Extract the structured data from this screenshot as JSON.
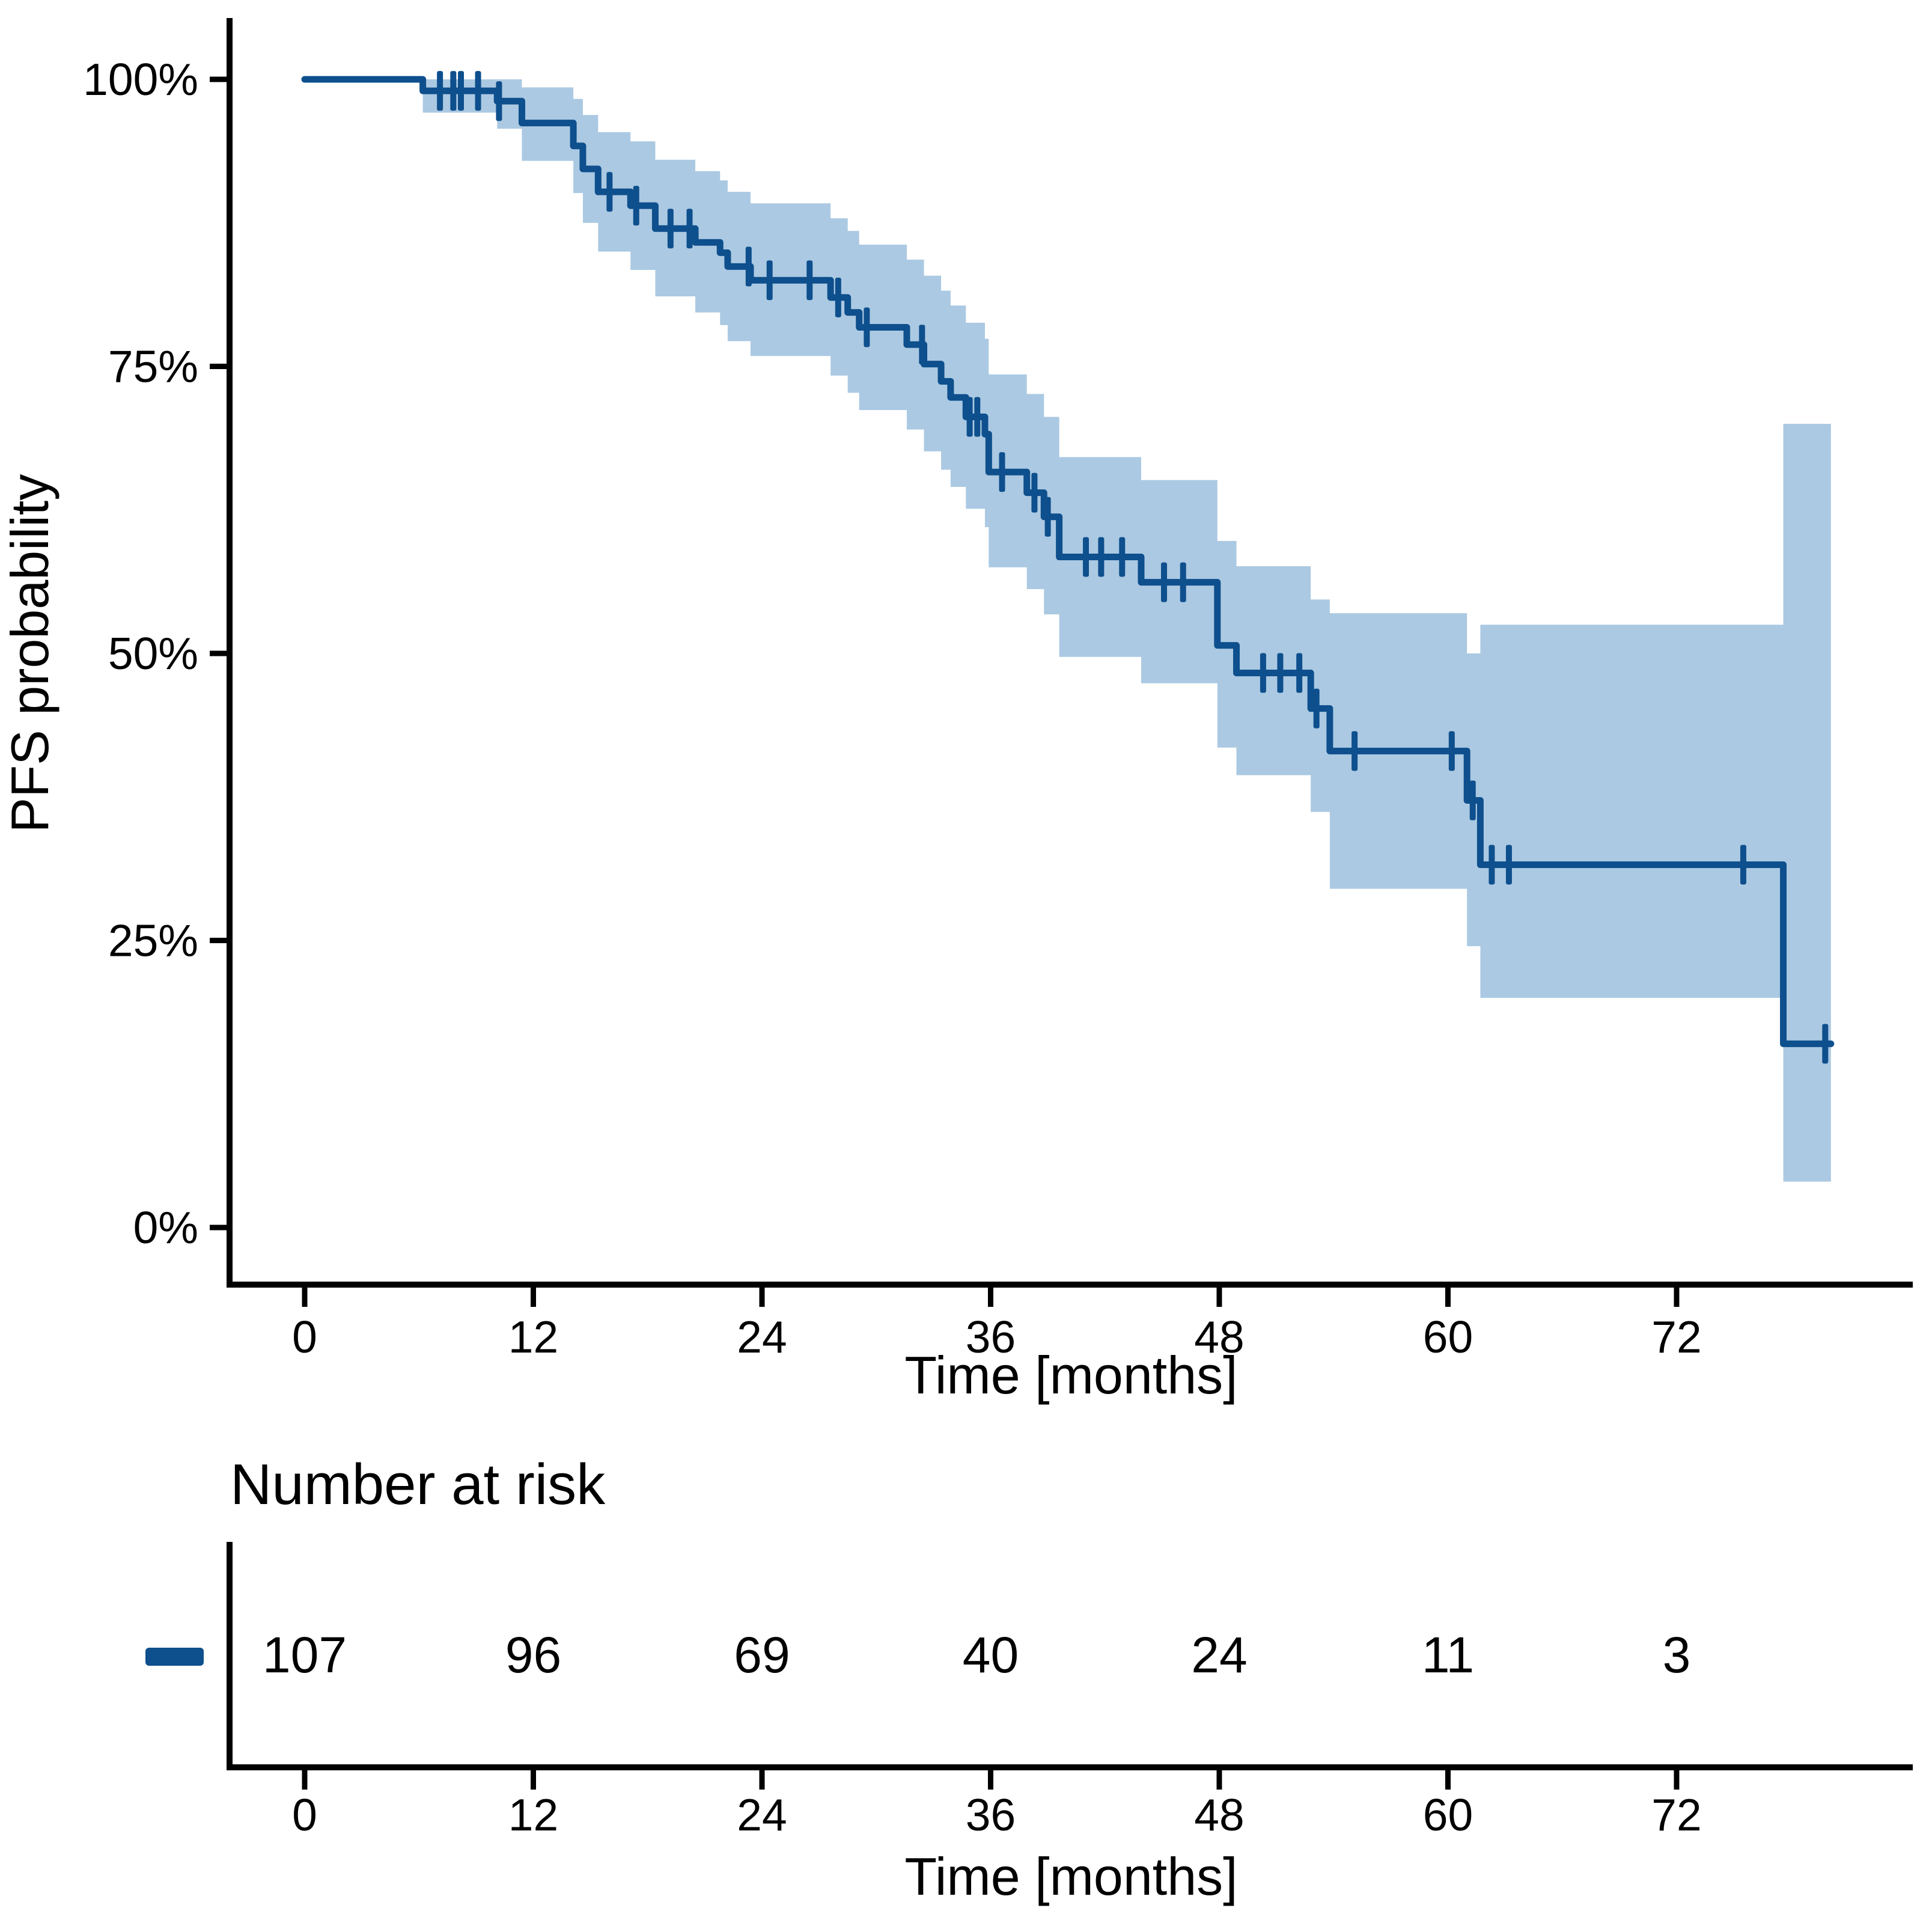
{
  "chart_data": {
    "type": "km_survival_step",
    "description": "Kaplan-Meier progression-free survival curve with 95% confidence band and number-at-risk table",
    "y_axis": {
      "label": "PFS probability",
      "ticks": [
        "0%",
        "25%",
        "50%",
        "75%",
        "100%"
      ],
      "tick_values": [
        0,
        25,
        50,
        75,
        100
      ],
      "range": [
        0,
        100
      ],
      "grid": false
    },
    "x_axis": {
      "label": "Time [months]",
      "ticks": [
        "0",
        "12",
        "24",
        "36",
        "48",
        "60",
        "72"
      ],
      "tick_values": [
        0,
        12,
        24,
        36,
        48,
        60,
        72
      ],
      "range": [
        0,
        84
      ]
    },
    "series_name": "PFS",
    "steps": [
      {
        "t": 0.0,
        "s": 100.0,
        "lo": null,
        "hi": null
      },
      {
        "t": 6.2,
        "s": 99.0,
        "lo": 97.1,
        "hi": 100
      },
      {
        "t": 10.1,
        "s": 98.1,
        "lo": 95.7,
        "hi": 100
      },
      {
        "t": 11.4,
        "s": 96.2,
        "lo": 92.9,
        "hi": 99.3
      },
      {
        "t": 14.1,
        "s": 94.2,
        "lo": 90.1,
        "hi": 98.3
      },
      {
        "t": 14.6,
        "s": 92.2,
        "lo": 87.5,
        "hi": 96.9
      },
      {
        "t": 15.4,
        "s": 90.2,
        "lo": 85.0,
        "hi": 95.4
      },
      {
        "t": 17.1,
        "s": 89.0,
        "lo": 83.4,
        "hi": 94.6
      },
      {
        "t": 18.4,
        "s": 87.0,
        "lo": 81.1,
        "hi": 93.0
      },
      {
        "t": 20.5,
        "s": 85.8,
        "lo": 79.7,
        "hi": 92.0
      },
      {
        "t": 21.8,
        "s": 84.9,
        "lo": 78.6,
        "hi": 91.2
      },
      {
        "t": 22.2,
        "s": 83.7,
        "lo": 77.2,
        "hi": 90.2
      },
      {
        "t": 23.4,
        "s": 82.5,
        "lo": 75.9,
        "hi": 89.2
      },
      {
        "t": 27.6,
        "s": 81.0,
        "lo": 74.2,
        "hi": 87.9
      },
      {
        "t": 28.5,
        "s": 79.7,
        "lo": 72.7,
        "hi": 86.8
      },
      {
        "t": 29.1,
        "s": 78.4,
        "lo": 71.2,
        "hi": 85.6
      },
      {
        "t": 31.6,
        "s": 76.9,
        "lo": 69.5,
        "hi": 84.3
      },
      {
        "t": 32.5,
        "s": 75.2,
        "lo": 67.6,
        "hi": 82.9
      },
      {
        "t": 33.4,
        "s": 73.7,
        "lo": 66.0,
        "hi": 81.6
      },
      {
        "t": 33.9,
        "s": 72.3,
        "lo": 64.5,
        "hi": 80.3
      },
      {
        "t": 34.7,
        "s": 70.6,
        "lo": 62.6,
        "hi": 78.8
      },
      {
        "t": 35.7,
        "s": 69.1,
        "lo": 61.0,
        "hi": 77.4
      },
      {
        "t": 35.9,
        "s": 65.8,
        "lo": 57.5,
        "hi": 74.3
      },
      {
        "t": 37.9,
        "s": 64.0,
        "lo": 55.6,
        "hi": 72.6
      },
      {
        "t": 38.8,
        "s": 61.9,
        "lo": 53.4,
        "hi": 70.6
      },
      {
        "t": 39.6,
        "s": 58.4,
        "lo": 49.7,
        "hi": 67.1
      },
      {
        "t": 43.9,
        "s": 56.2,
        "lo": 47.4,
        "hi": 65.1
      },
      {
        "t": 47.9,
        "s": 50.7,
        "lo": 41.8,
        "hi": 59.8
      },
      {
        "t": 48.9,
        "s": 48.3,
        "lo": 39.4,
        "hi": 57.6
      },
      {
        "t": 52.8,
        "s": 45.2,
        "lo": 36.2,
        "hi": 54.7
      },
      {
        "t": 53.8,
        "s": 41.5,
        "lo": 29.5,
        "hi": 53.5
      },
      {
        "t": 61.0,
        "s": 37.2,
        "lo": 24.5,
        "hi": 50.0
      },
      {
        "t": 61.7,
        "s": 31.6,
        "lo": 20.0,
        "hi": 52.5
      },
      {
        "t": 77.6,
        "s": 16.0,
        "lo": 4.0,
        "hi": 70.0
      }
    ],
    "end_time": 80.1,
    "censors": [
      {
        "t": 7.1,
        "s": 99.0
      },
      {
        "t": 7.8,
        "s": 99.0
      },
      {
        "t": 8.2,
        "s": 99.0
      },
      {
        "t": 9.1,
        "s": 99.0
      },
      {
        "t": 10.2,
        "s": 98.1
      },
      {
        "t": 16.0,
        "s": 90.2
      },
      {
        "t": 17.4,
        "s": 89.0
      },
      {
        "t": 19.2,
        "s": 87.0
      },
      {
        "t": 20.2,
        "s": 87.0
      },
      {
        "t": 23.3,
        "s": 83.7
      },
      {
        "t": 24.4,
        "s": 82.5
      },
      {
        "t": 26.5,
        "s": 82.5
      },
      {
        "t": 28.0,
        "s": 81.0
      },
      {
        "t": 29.5,
        "s": 78.4
      },
      {
        "t": 32.4,
        "s": 76.9
      },
      {
        "t": 34.9,
        "s": 70.6
      },
      {
        "t": 35.3,
        "s": 70.6
      },
      {
        "t": 36.6,
        "s": 65.8
      },
      {
        "t": 38.3,
        "s": 64.0
      },
      {
        "t": 39.0,
        "s": 61.9
      },
      {
        "t": 41.0,
        "s": 58.4
      },
      {
        "t": 41.8,
        "s": 58.4
      },
      {
        "t": 42.9,
        "s": 58.4
      },
      {
        "t": 45.1,
        "s": 56.2
      },
      {
        "t": 46.1,
        "s": 56.2
      },
      {
        "t": 50.3,
        "s": 48.3
      },
      {
        "t": 51.2,
        "s": 48.3
      },
      {
        "t": 52.2,
        "s": 48.3
      },
      {
        "t": 53.1,
        "s": 45.2
      },
      {
        "t": 55.1,
        "s": 41.5
      },
      {
        "t": 60.2,
        "s": 41.5
      },
      {
        "t": 61.3,
        "s": 37.2
      },
      {
        "t": 62.3,
        "s": 31.6
      },
      {
        "t": 63.2,
        "s": 31.6
      },
      {
        "t": 75.5,
        "s": 31.6
      },
      {
        "t": 79.8,
        "s": 16.0
      }
    ],
    "risk_table": {
      "title": "Number at risk",
      "axis_label": "Time [months]",
      "times": [
        0,
        12,
        24,
        36,
        48,
        60,
        72
      ],
      "counts": [
        "107",
        "96",
        "69",
        "40",
        "24",
        "11",
        "3"
      ],
      "legend_position": "left"
    },
    "colors": {
      "line": "#0e4f8d",
      "ci_band": "#abc9e2",
      "axis": "#000000",
      "background": "#ffffff"
    }
  }
}
